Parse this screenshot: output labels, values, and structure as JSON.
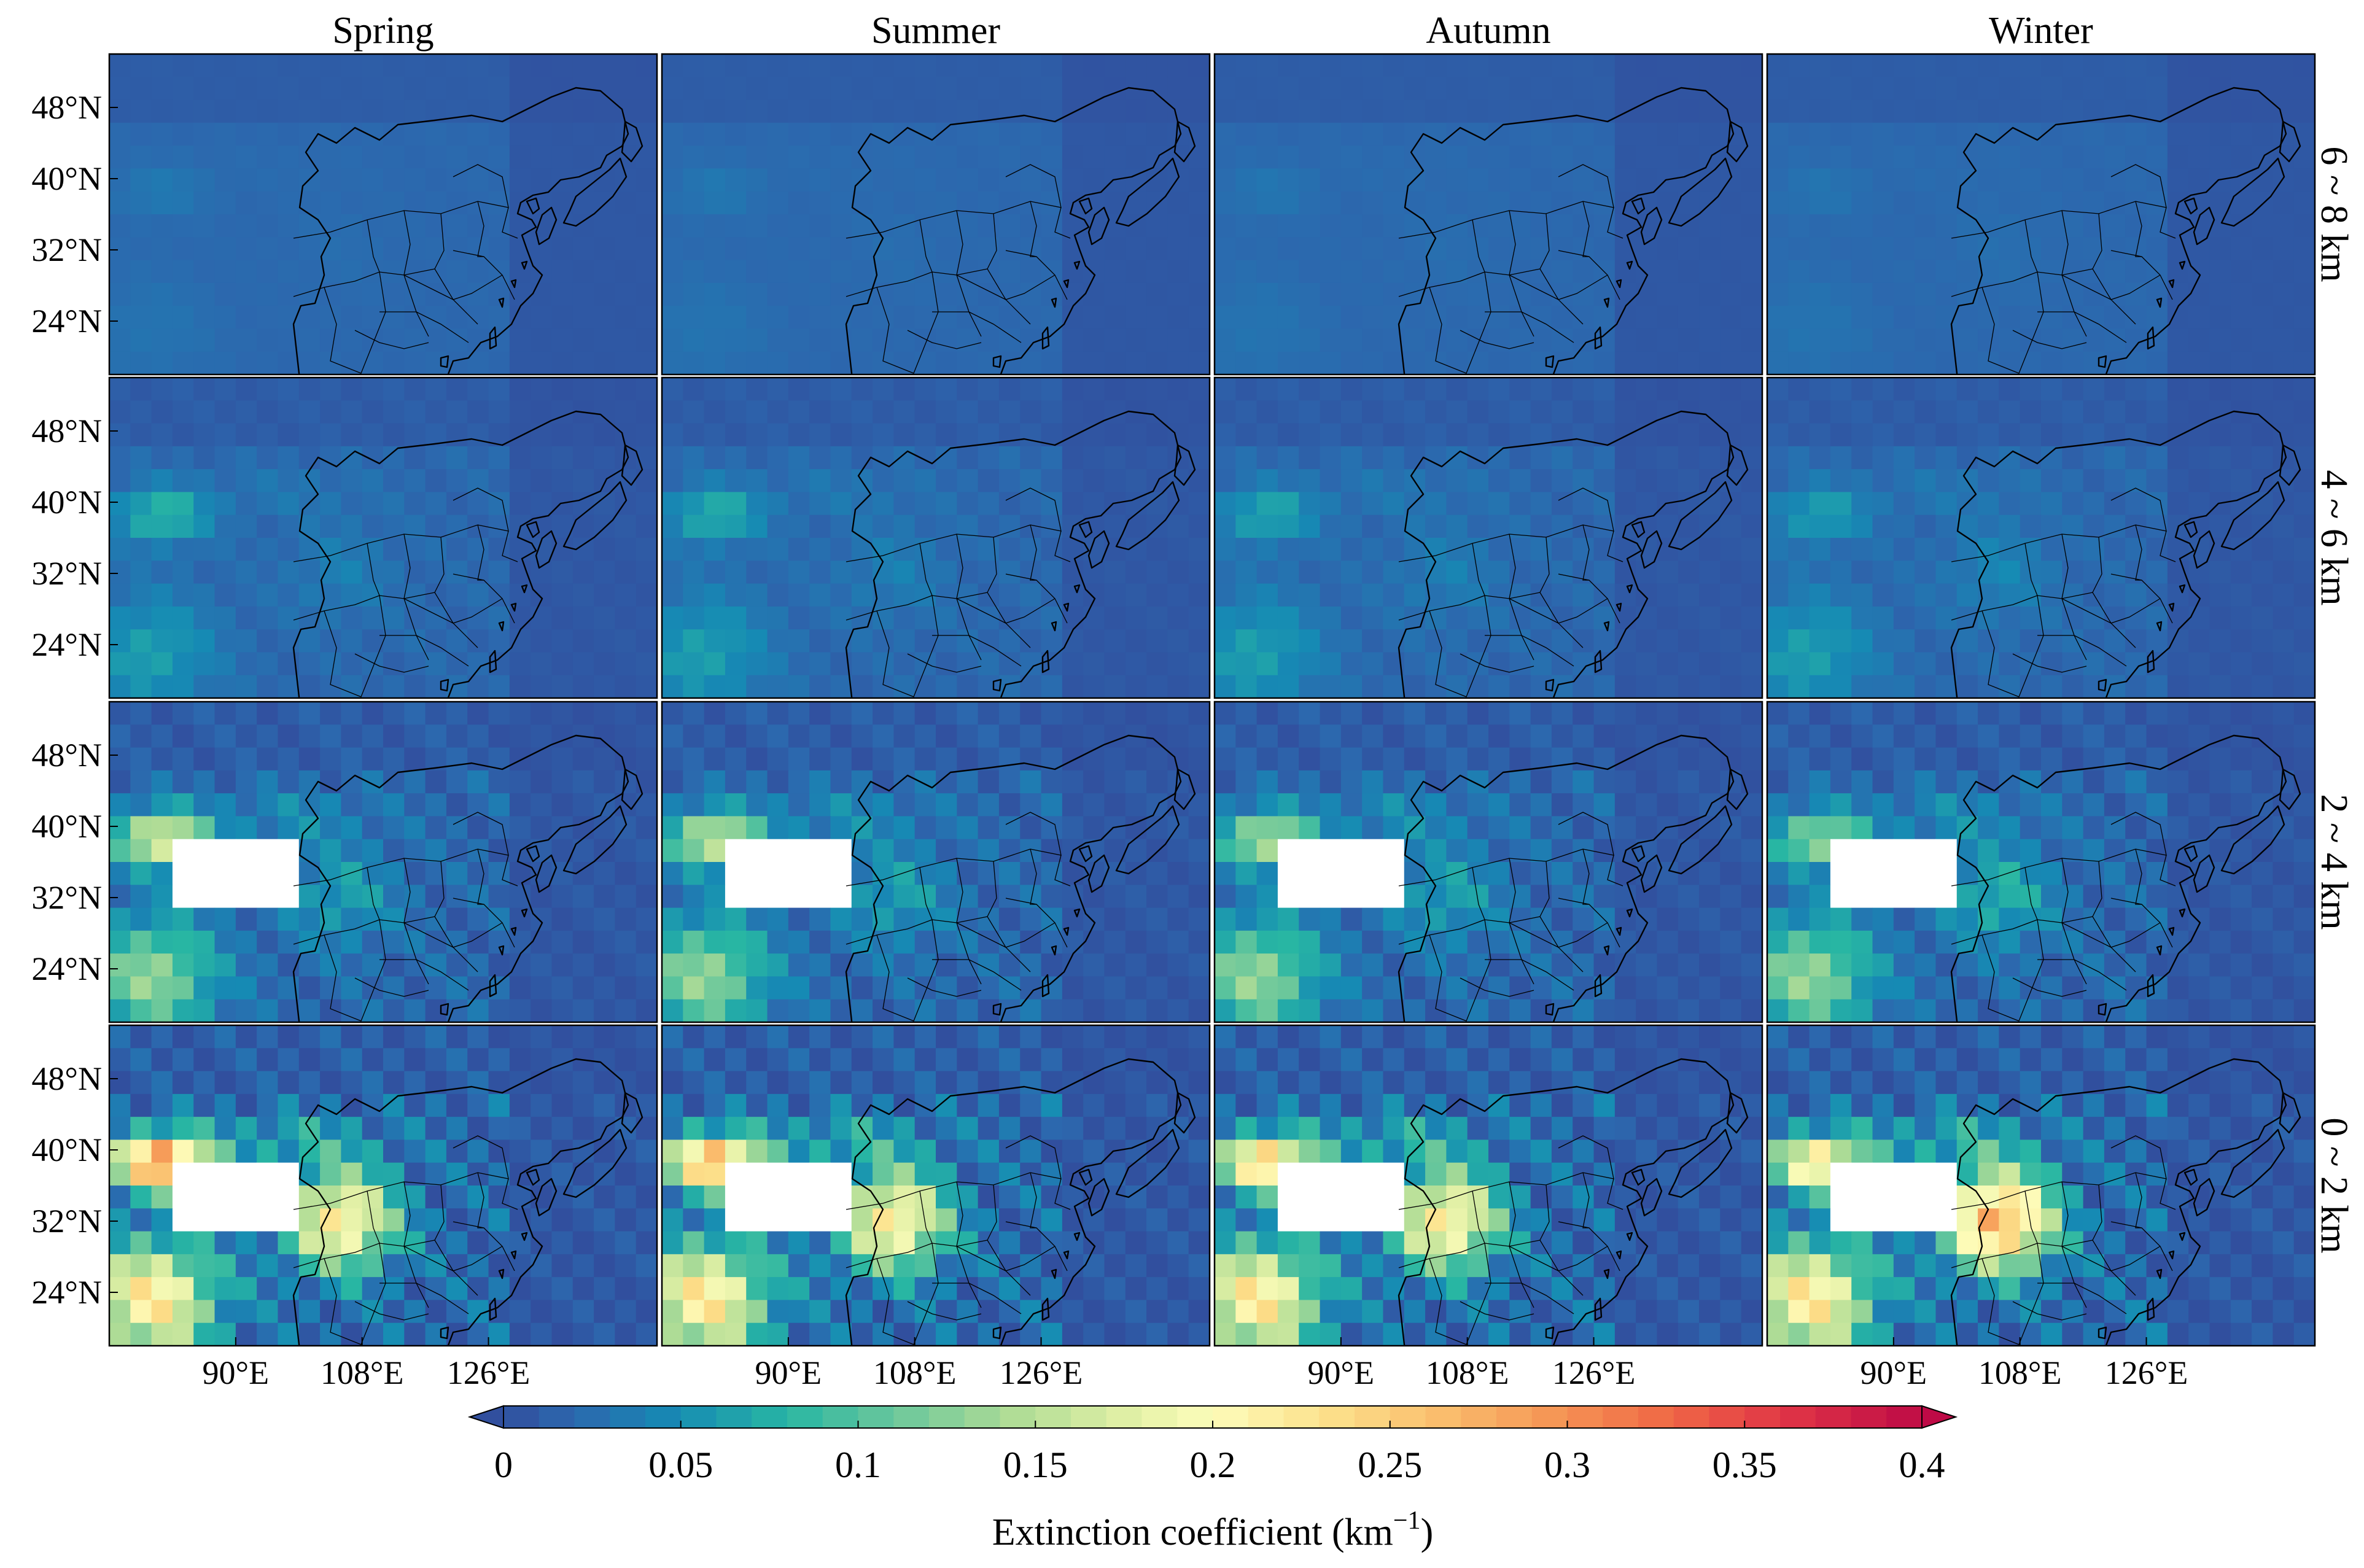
{
  "chart_data": {
    "type": "heatmap",
    "columns": [
      "Spring",
      "Summer",
      "Autumn",
      "Winter"
    ],
    "rows": [
      "6 ~ 8 km",
      "4 ~ 6 km",
      "2 ~ 4 km",
      "0 ~ 2 km"
    ],
    "x_ticks": [
      "90°E",
      "108°E",
      "126°E"
    ],
    "x_tick_values": [
      90,
      108,
      126
    ],
    "y_ticks": [
      "48°N",
      "40°N",
      "32°N",
      "24°N"
    ],
    "y_tick_values": [
      48,
      40,
      32,
      24
    ],
    "lon_range": [
      72,
      150
    ],
    "lat_range": [
      18,
      54
    ],
    "colorbar": {
      "label_prefix": "Extinction coefficient (km",
      "label_exp": "−1",
      "label_suffix": ")",
      "ticks": [
        "0",
        "0.05",
        "0.1",
        "0.15",
        "0.2",
        "0.25",
        "0.3",
        "0.35",
        "0.4"
      ],
      "tick_values": [
        0,
        0.05,
        0.1,
        0.15,
        0.2,
        0.25,
        0.3,
        0.35,
        0.4
      ],
      "range": [
        0,
        0.4
      ],
      "extend": "both",
      "colormap": "Spectral_r"
    },
    "missing_color": "#ffffff",
    "background_value": 0.02
  }
}
